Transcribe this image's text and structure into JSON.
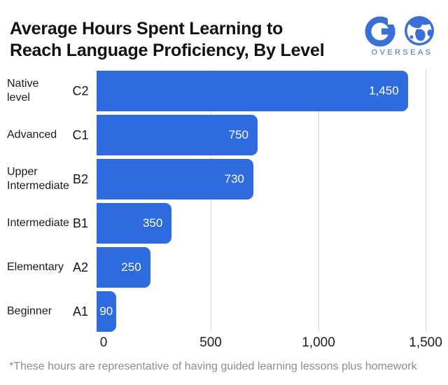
{
  "header": {
    "title": "Average Hours Spent Learning to Reach Language Proficiency, By Level",
    "title_lines": [
      "Average Hours Spent Learning to",
      "Reach Language Proficiency, By Level"
    ]
  },
  "logo": {
    "brand": "Go Overseas",
    "wordmark": "OVERSEAS",
    "color": "#3a6fd8"
  },
  "chart_data": {
    "type": "bar",
    "orientation": "horizontal",
    "title": "Average Hours Spent Learning to Reach Language Proficiency, By Level",
    "categories": [
      "Native level",
      "Advanced",
      "Upper Intermediate",
      "Intermediate",
      "Elementary",
      "Beginner"
    ],
    "level_codes": [
      "C2",
      "C1",
      "B2",
      "B1",
      "A2",
      "A1"
    ],
    "values": [
      1450,
      750,
      730,
      350,
      250,
      90
    ],
    "value_labels": [
      "1,450",
      "750",
      "730",
      "350",
      "250",
      "90"
    ],
    "value_label_position": "inside-end",
    "xlabel": "",
    "ylabel": "",
    "xlim": [
      0,
      1500
    ],
    "x_ticks": [
      "0",
      "500",
      "1,000",
      "1,500"
    ],
    "x_tick_values": [
      0,
      500,
      1000,
      1500
    ],
    "grid": true,
    "bar_color": "#2e6bdf",
    "value_label_color": "#ffffff",
    "footnote": "*These hours are representative of having guided learning lessons plus homework"
  }
}
